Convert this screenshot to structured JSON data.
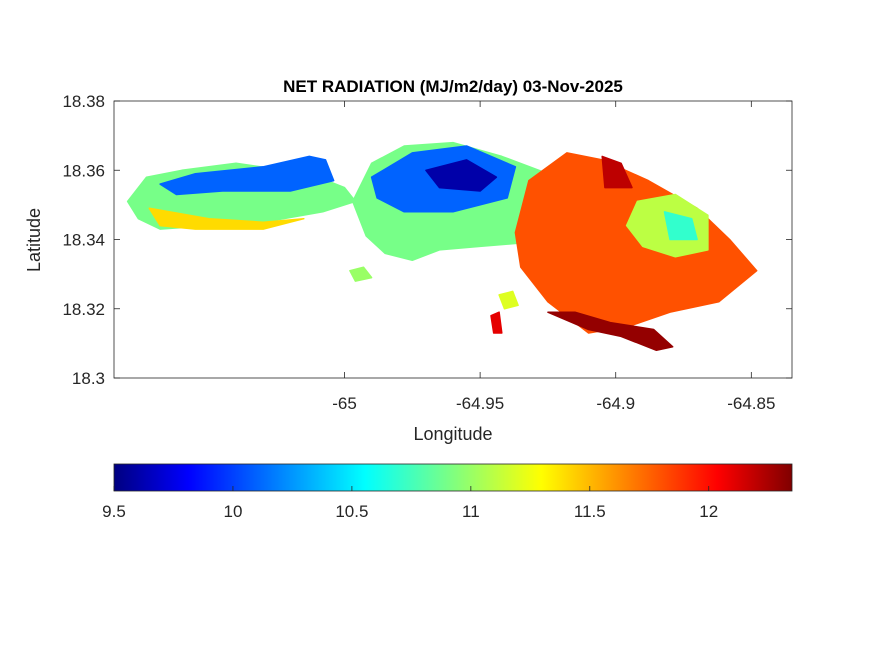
{
  "chart_data": {
    "type": "heatmap",
    "title": "NET RADIATION (MJ/m2/day) 03-Nov-2025",
    "xlabel": "Longitude",
    "ylabel": "Latitude",
    "xlim": [
      -65.085,
      -64.835
    ],
    "ylim": [
      18.3,
      18.38
    ],
    "xticks": [
      -65,
      -64.95,
      -64.9,
      -64.85
    ],
    "xtick_labels": [
      "-65",
      "-64.95",
      "-64.9",
      "-64.85"
    ],
    "yticks": [
      18.3,
      18.32,
      18.34,
      18.36,
      18.38
    ],
    "ytick_labels": [
      "18.3",
      "18.32",
      "18.34",
      "18.36",
      "18.38"
    ],
    "colorbar": {
      "colormap": "jet",
      "range": [
        9.5,
        12.35
      ],
      "ticks": [
        9.5,
        10,
        10.5,
        11,
        11.5,
        12
      ],
      "tick_labels": [
        "9.5",
        "10",
        "10.5",
        "11",
        "11.5",
        "12"
      ],
      "stops": [
        "#000080",
        "#0000ff",
        "#00ffff",
        "#ffff00",
        "#ff0000",
        "#800000"
      ]
    },
    "regions": [
      {
        "name": "west-tip",
        "value": 10.9,
        "outline": [
          [
            -65.08,
            18.351
          ],
          [
            -65.073,
            18.358
          ],
          [
            -65.06,
            18.36
          ],
          [
            -65.04,
            18.362
          ],
          [
            -65.013,
            18.359
          ],
          [
            -65.0,
            18.355
          ],
          [
            -64.996,
            18.351
          ],
          [
            -65.008,
            18.348
          ],
          [
            -65.03,
            18.345
          ],
          [
            -65.05,
            18.344
          ],
          [
            -65.068,
            18.343
          ],
          [
            -65.076,
            18.346
          ]
        ]
      },
      {
        "name": "west-north-edge",
        "value": 10.1,
        "outline": [
          [
            -65.068,
            18.356
          ],
          [
            -65.055,
            18.359
          ],
          [
            -65.03,
            18.361
          ],
          [
            -65.013,
            18.364
          ],
          [
            -65.007,
            18.363
          ],
          [
            -65.004,
            18.357
          ],
          [
            -65.02,
            18.354
          ],
          [
            -65.045,
            18.354
          ],
          [
            -65.062,
            18.353
          ]
        ]
      },
      {
        "name": "west-south-edge",
        "value": 11.4,
        "outline": [
          [
            -65.072,
            18.349
          ],
          [
            -65.05,
            18.346
          ],
          [
            -65.03,
            18.345
          ],
          [
            -65.015,
            18.346
          ],
          [
            -65.03,
            18.343
          ],
          [
            -65.055,
            18.343
          ],
          [
            -65.068,
            18.344
          ]
        ]
      },
      {
        "name": "central",
        "value": 10.9,
        "outline": [
          [
            -64.997,
            18.351
          ],
          [
            -64.99,
            18.362
          ],
          [
            -64.978,
            18.367
          ],
          [
            -64.96,
            18.368
          ],
          [
            -64.942,
            18.364
          ],
          [
            -64.925,
            18.359
          ],
          [
            -64.91,
            18.357
          ],
          [
            -64.915,
            18.34
          ],
          [
            -64.935,
            18.339
          ],
          [
            -64.95,
            18.338
          ],
          [
            -64.965,
            18.337
          ],
          [
            -64.975,
            18.334
          ],
          [
            -64.985,
            18.336
          ],
          [
            -64.992,
            18.341
          ]
        ]
      },
      {
        "name": "central-high",
        "value": 10.1,
        "outline": [
          [
            -64.99,
            18.358
          ],
          [
            -64.975,
            18.365
          ],
          [
            -64.955,
            18.367
          ],
          [
            -64.937,
            18.361
          ],
          [
            -64.94,
            18.352
          ],
          [
            -64.96,
            18.348
          ],
          [
            -64.978,
            18.348
          ],
          [
            -64.988,
            18.352
          ]
        ]
      },
      {
        "name": "central-core",
        "value": 9.6,
        "outline": [
          [
            -64.97,
            18.36
          ],
          [
            -64.955,
            18.363
          ],
          [
            -64.944,
            18.358
          ],
          [
            -64.95,
            18.354
          ],
          [
            -64.965,
            18.355
          ]
        ]
      },
      {
        "name": "east",
        "value": 11.8,
        "outline": [
          [
            -64.932,
            18.357
          ],
          [
            -64.918,
            18.365
          ],
          [
            -64.905,
            18.363
          ],
          [
            -64.888,
            18.357
          ],
          [
            -64.87,
            18.349
          ],
          [
            -64.858,
            18.34
          ],
          [
            -64.848,
            18.331
          ],
          [
            -64.862,
            18.322
          ],
          [
            -64.88,
            18.319
          ],
          [
            -64.895,
            18.315
          ],
          [
            -64.91,
            18.313
          ],
          [
            -64.925,
            18.322
          ],
          [
            -64.935,
            18.332
          ],
          [
            -64.937,
            18.342
          ]
        ]
      },
      {
        "name": "east-north-tip",
        "value": 12.2,
        "outline": [
          [
            -64.905,
            18.364
          ],
          [
            -64.898,
            18.362
          ],
          [
            -64.894,
            18.355
          ],
          [
            -64.904,
            18.355
          ]
        ]
      },
      {
        "name": "east-south-coast",
        "value": 12.3,
        "outline": [
          [
            -64.925,
            18.319
          ],
          [
            -64.91,
            18.314
          ],
          [
            -64.898,
            18.312
          ],
          [
            -64.885,
            18.308
          ],
          [
            -64.879,
            18.309
          ],
          [
            -64.886,
            18.314
          ],
          [
            -64.902,
            18.316
          ],
          [
            -64.915,
            18.319
          ]
        ]
      },
      {
        "name": "east-plateau",
        "value": 11.1,
        "outline": [
          [
            -64.892,
            18.351
          ],
          [
            -64.878,
            18.353
          ],
          [
            -64.866,
            18.347
          ],
          [
            -64.866,
            18.337
          ],
          [
            -64.878,
            18.335
          ],
          [
            -64.89,
            18.338
          ],
          [
            -64.896,
            18.344
          ]
        ]
      },
      {
        "name": "east-plateau-core",
        "value": 10.7,
        "outline": [
          [
            -64.882,
            18.348
          ],
          [
            -64.872,
            18.346
          ],
          [
            -64.87,
            18.34
          ],
          [
            -64.88,
            18.34
          ]
        ]
      },
      {
        "name": "islet-1",
        "value": 11.0,
        "outline": [
          [
            -64.998,
            18.331
          ],
          [
            -64.993,
            18.332
          ],
          [
            -64.99,
            18.329
          ],
          [
            -64.996,
            18.328
          ]
        ]
      },
      {
        "name": "islet-2",
        "value": 11.2,
        "outline": [
          [
            -64.943,
            18.324
          ],
          [
            -64.938,
            18.325
          ],
          [
            -64.936,
            18.321
          ],
          [
            -64.941,
            18.32
          ]
        ]
      },
      {
        "name": "islet-3",
        "value": 12.1,
        "outline": [
          [
            -64.946,
            18.318
          ],
          [
            -64.943,
            18.319
          ],
          [
            -64.942,
            18.313
          ],
          [
            -64.945,
            18.313
          ]
        ]
      }
    ]
  }
}
